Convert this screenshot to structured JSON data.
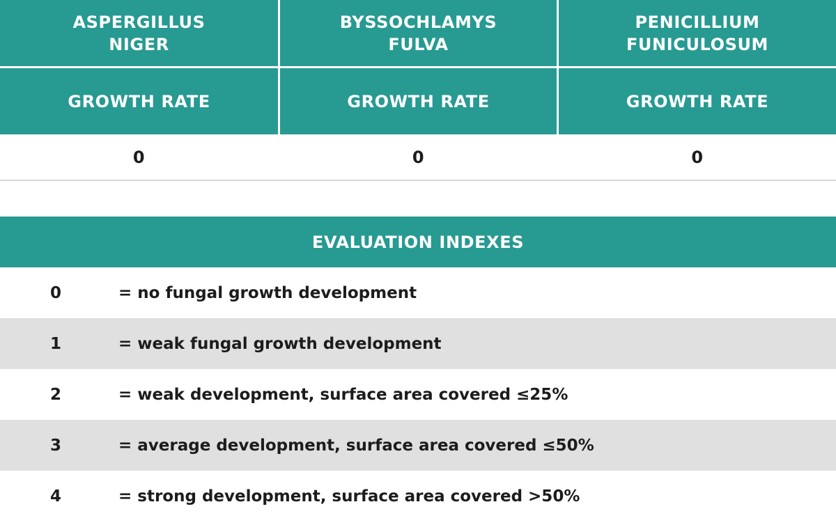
{
  "species_table": {
    "species": [
      {
        "name": "ASPERGILLUS NIGER",
        "rate_label": "GROWTH RATE",
        "rate_value": "0"
      },
      {
        "name": "BYSSOCHLAMYS FULVA",
        "rate_label": "GROWTH RATE",
        "rate_value": "0"
      },
      {
        "name": "PENICILLIUM FUNICULOSUM",
        "rate_label": "GROWTH RATE",
        "rate_value": "0"
      }
    ]
  },
  "evaluation": {
    "title": "EVALUATION INDEXES",
    "indexes": [
      {
        "code": "0",
        "description": "= no fungal growth development"
      },
      {
        "code": "1",
        "description": "= weak fungal growth development"
      },
      {
        "code": "2",
        "description": "= weak development, surface area covered ≤25%"
      },
      {
        "code": "3",
        "description": "= average development, surface area covered ≤50%"
      },
      {
        "code": "4",
        "description": "= strong development, surface area covered >50%"
      }
    ]
  },
  "colors": {
    "header_teal": "#279a92",
    "row_shade": "#e0e0e0",
    "text": "#1c1c1c"
  }
}
